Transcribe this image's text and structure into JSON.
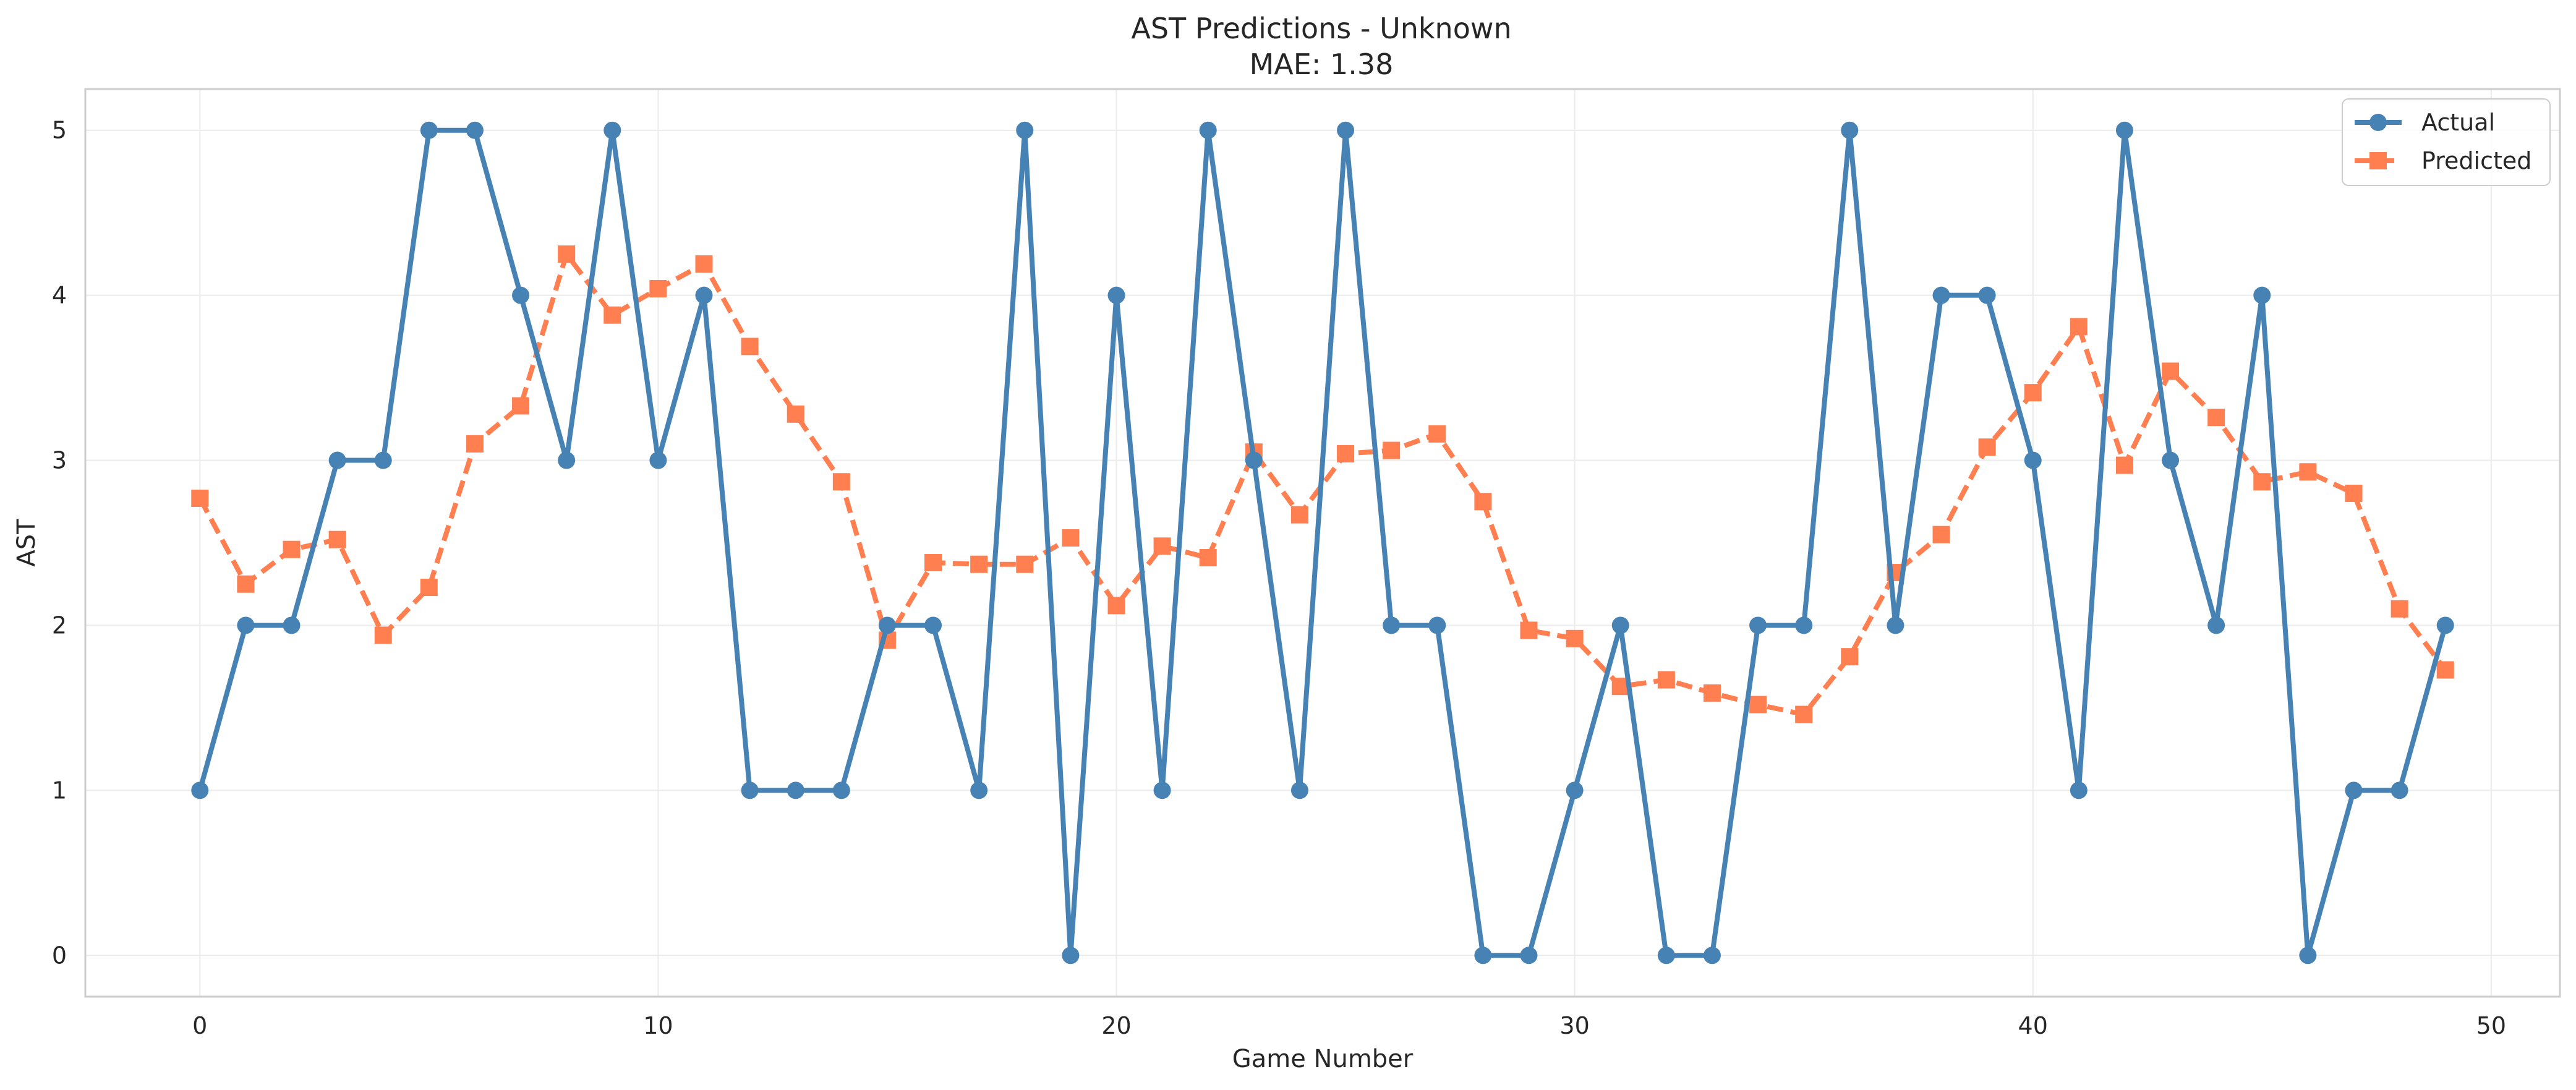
{
  "chart_data": {
    "type": "line",
    "title": "AST Predictions - Unknown",
    "subtitle": "MAE: 1.38",
    "xlabel": "Game Number",
    "ylabel": "AST",
    "xlim": [
      -2.5,
      51.5
    ],
    "ylim": [
      -0.25,
      5.25
    ],
    "xticks": [
      0,
      10,
      20,
      30,
      40,
      50
    ],
    "yticks": [
      0,
      1,
      2,
      3,
      4,
      5
    ],
    "grid": true,
    "legend_position": "top-right",
    "x": [
      0,
      1,
      2,
      3,
      4,
      5,
      6,
      7,
      8,
      9,
      10,
      11,
      12,
      13,
      14,
      15,
      16,
      17,
      18,
      19,
      20,
      21,
      22,
      23,
      24,
      25,
      26,
      27,
      28,
      29,
      30,
      31,
      32,
      33,
      34,
      35,
      36,
      37,
      38,
      39,
      40,
      41,
      42,
      43,
      44,
      45,
      46,
      47,
      48,
      49
    ],
    "series": [
      {
        "name": "Actual",
        "color": "#4682B4",
        "marker": "circle",
        "line_style": "solid",
        "values": [
          1,
          2,
          2,
          3,
          3,
          5,
          5,
          4,
          3,
          5,
          3,
          4,
          1,
          1,
          1,
          2,
          2,
          1,
          5,
          0,
          4,
          1,
          5,
          3,
          1,
          5,
          2,
          2,
          0,
          0,
          1,
          2,
          0,
          0,
          2,
          2,
          5,
          2,
          4,
          4,
          3,
          1,
          5,
          3,
          2,
          4,
          0,
          1,
          1,
          2
        ]
      },
      {
        "name": "Predicted",
        "color": "#FF7F50",
        "marker": "square",
        "line_style": "dashed",
        "values": [
          2.77,
          2.25,
          2.46,
          2.52,
          1.94,
          2.23,
          3.1,
          3.33,
          4.25,
          3.88,
          4.04,
          4.19,
          3.69,
          3.28,
          2.87,
          1.91,
          2.38,
          2.37,
          2.37,
          2.53,
          2.12,
          2.48,
          2.41,
          3.05,
          2.67,
          3.04,
          3.06,
          3.16,
          2.75,
          1.97,
          1.92,
          1.63,
          1.67,
          1.59,
          1.52,
          1.46,
          1.81,
          2.32,
          2.55,
          3.08,
          3.41,
          3.81,
          2.97,
          3.54,
          3.26,
          2.87,
          2.93,
          2.8,
          2.1,
          1.73
        ]
      }
    ]
  }
}
